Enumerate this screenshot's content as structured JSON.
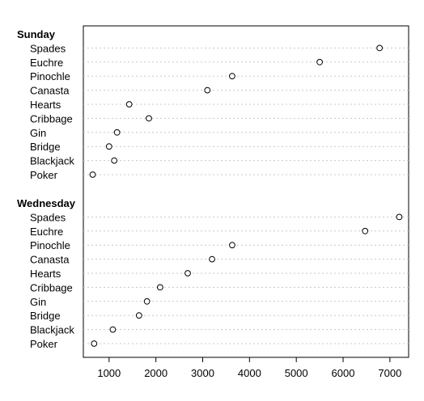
{
  "chart_data": {
    "type": "dotplot",
    "groups": [
      {
        "name": "Sunday",
        "categories": [
          "Spades",
          "Euchre",
          "Pinochle",
          "Canasta",
          "Hearts",
          "Cribbage",
          "Gin",
          "Bridge",
          "Blackjack",
          "Poker"
        ],
        "values": [
          6780,
          5500,
          3630,
          3100,
          1430,
          1850,
          1170,
          1000,
          1110,
          650
        ]
      },
      {
        "name": "Wednesday",
        "categories": [
          "Spades",
          "Euchre",
          "Pinochle",
          "Canasta",
          "Hearts",
          "Cribbage",
          "Gin",
          "Bridge",
          "Blackjack",
          "Poker"
        ],
        "values": [
          7200,
          6470,
          3630,
          3200,
          2680,
          2090,
          1810,
          1640,
          1080,
          680
        ]
      }
    ],
    "xlim": [
      450,
      7400
    ],
    "xticks": [
      1000,
      2000,
      3000,
      4000,
      5000,
      6000,
      7000
    ],
    "grid": "dotted horizontal",
    "title": "",
    "xlabel": "",
    "ylabel": ""
  }
}
